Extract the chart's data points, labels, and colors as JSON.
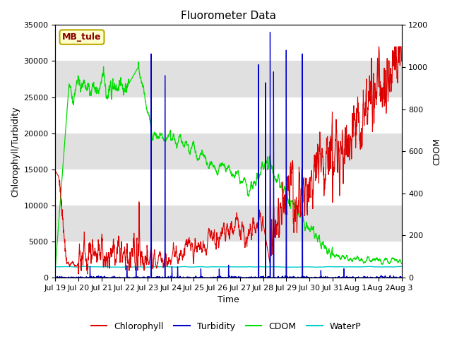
{
  "title": "Fluorometer Data",
  "xlabel": "Time",
  "ylabel_left": "Chlorophyll/Turbidity",
  "ylabel_right": "CDOM",
  "annotation": "MB_tule",
  "ylim_left": [
    0,
    35000
  ],
  "ylim_right": [
    0,
    1200
  ],
  "yticks_left": [
    0,
    5000,
    10000,
    15000,
    20000,
    25000,
    30000,
    35000
  ],
  "yticks_right": [
    0,
    200,
    400,
    600,
    800,
    1000,
    1200
  ],
  "colors": {
    "chlorophyll": "#dd0000",
    "turbidity": "#0000cc",
    "cdom": "#00dd00",
    "waterp": "#00cccc",
    "bg_stripe": "#e0e0e0",
    "annotation_bg": "#ffffcc",
    "annotation_border": "#bbaa00"
  },
  "legend": [
    "Chlorophyll",
    "Turbidity",
    "CDOM",
    "WaterP"
  ],
  "tick_labels": [
    "Jul 19",
    "Jul 20",
    "Jul 21",
    "Jul 22",
    "Jul 23",
    "Jul 24",
    "Jul 25",
    "Jul 26",
    "Jul 27",
    "Jul 28",
    "Jul 29",
    "Jul 30",
    "Jul 31",
    "Aug 1",
    "Aug 2",
    "Aug 3"
  ]
}
